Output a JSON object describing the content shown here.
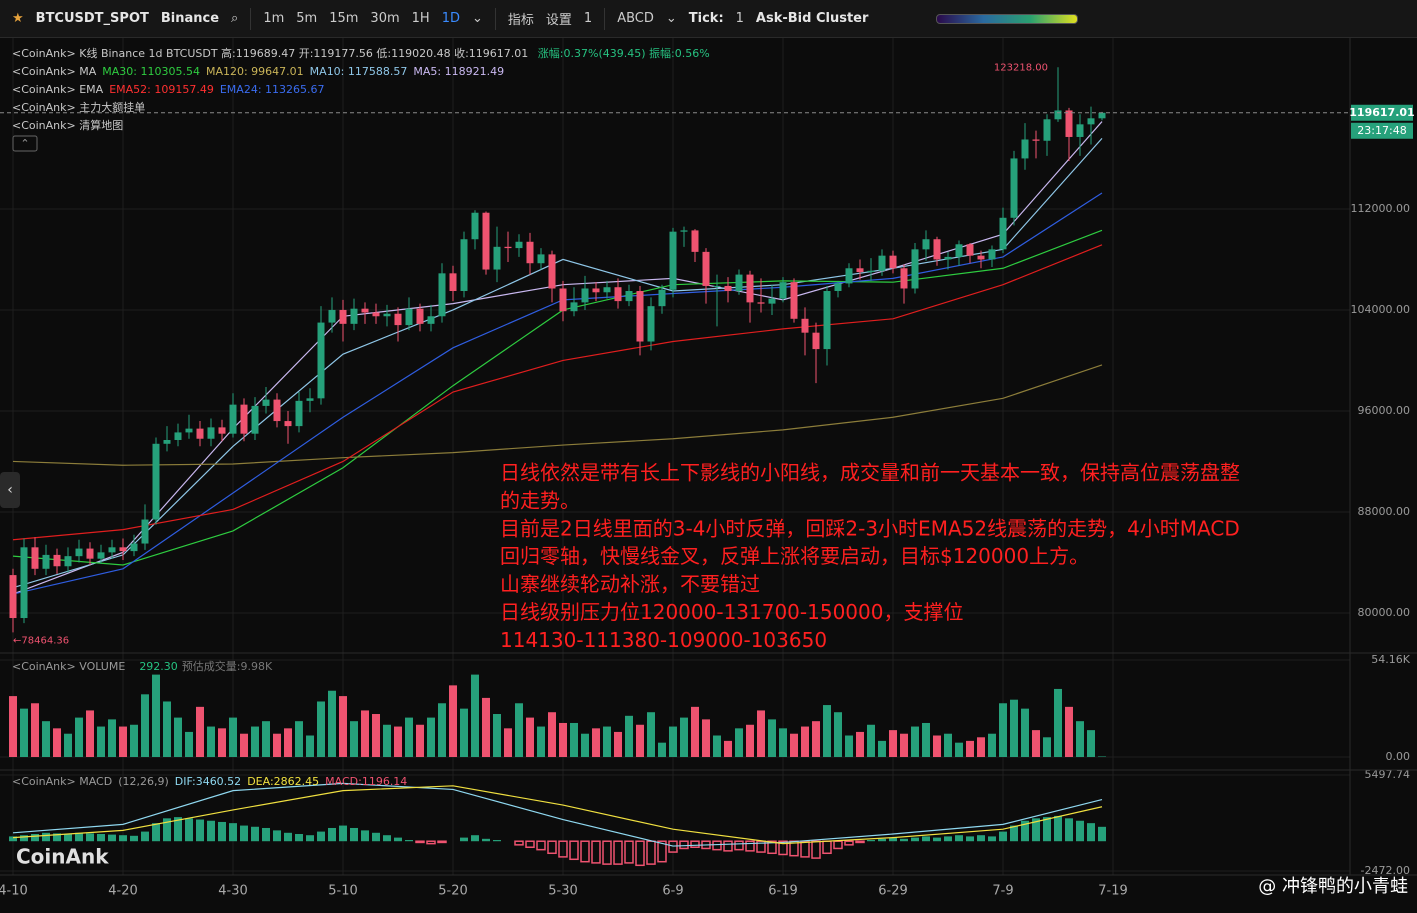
{
  "toolbar": {
    "symbol": "BTCUSDT_SPOT",
    "exchange": "Binance",
    "intervals": [
      "1m",
      "5m",
      "15m",
      "30m",
      "1H",
      "1D"
    ],
    "indicators": "指标",
    "settings": "设置",
    "layouts": "1",
    "abcd": "ABCD",
    "tick": "Tick:",
    "tick_value": "1",
    "cluster": "Ask-Bid Cluster"
  },
  "chart_data": {
    "type": "candlestick",
    "legend_lines": [
      {
        "items": [
          {
            "text": "<CoinAnk> K线  Binance 1d BTCUSDT 高:119689.47 开:119177.56 低:119020.48 收:119617.01 ",
            "color": "#c8c8c8"
          },
          {
            "text": "涨幅:0.37%(439.45) 振幅:0.56%",
            "color": "#26c281"
          }
        ]
      },
      {
        "items": [
          {
            "text": "<CoinAnk> MA",
            "color": "#c8c8c8"
          },
          {
            "text": "MA30: 110305.54",
            "color": "#2ecc40"
          },
          {
            "text": "MA120: 99647.01",
            "color": "#c9b458"
          },
          {
            "text": "MA10: 117588.57",
            "color": "#8fc7e8"
          },
          {
            "text": "MA5: 118921.49",
            "color": "#c9b8f0"
          }
        ]
      },
      {
        "items": [
          {
            "text": "<CoinAnk> EMA",
            "color": "#c8c8c8"
          },
          {
            "text": "EMA52: 109157.49",
            "color": "#ff3030"
          },
          {
            "text": "EMA24: 113265.67",
            "color": "#3a6cf0"
          }
        ]
      },
      {
        "items": [
          {
            "text": "<CoinAnk> 主力大额挂单",
            "color": "#c8c8c8"
          }
        ]
      },
      {
        "items": [
          {
            "text": "<CoinAnk> 清算地图",
            "color": "#c8c8c8"
          }
        ]
      }
    ],
    "xlim": [
      -0.5,
      121.5
    ],
    "xticks": [
      {
        "value": 0,
        "label": "4-10"
      },
      {
        "value": 10,
        "label": "4-20"
      },
      {
        "value": 20,
        "label": "4-30"
      },
      {
        "value": 30,
        "label": "5-10"
      },
      {
        "value": 40,
        "label": "5-20"
      },
      {
        "value": 50,
        "label": "5-30"
      },
      {
        "value": 60,
        "label": "6-9"
      },
      {
        "value": 70,
        "label": "6-19"
      },
      {
        "value": 80,
        "label": "6-29"
      },
      {
        "value": 90,
        "label": "7-9"
      },
      {
        "value": 100,
        "label": "7-19"
      }
    ],
    "ylim": [
      76830,
      125380
    ],
    "yticks": [
      {
        "value": 80000,
        "label": "80000.00"
      },
      {
        "value": 88000,
        "label": "88000.00"
      },
      {
        "value": 96000,
        "label": "96000.00"
      },
      {
        "value": 104000,
        "label": "104000.00"
      },
      {
        "value": 112000,
        "label": "112000.00"
      }
    ],
    "grid": true,
    "up_color": "#26a17b",
    "down_color": "#ef5370",
    "candles": {
      "open": [
        83000,
        79600,
        85200,
        83500,
        84600,
        83700,
        84500,
        85100,
        84300,
        84800,
        85200,
        84900,
        85500,
        87400,
        93400,
        93700,
        94300,
        94600,
        93800,
        94700,
        94200,
        96500,
        94200,
        96400,
        96900,
        95200,
        94800,
        96800,
        97000,
        103000,
        104000,
        102900,
        104100,
        103800,
        103500,
        103700,
        102800,
        104100,
        102900,
        103500,
        106900,
        105500,
        109600,
        111700,
        107200,
        109000,
        108900,
        109400,
        107700,
        108400,
        105700,
        103900,
        104600,
        105700,
        105400,
        105800,
        104700,
        105500,
        101500,
        104300,
        105600,
        110200,
        110300,
        108600,
        105900,
        105900,
        105500,
        106800,
        104600,
        104500,
        104900,
        106200,
        103300,
        102200,
        100900,
        105500,
        106100,
        107300,
        107000,
        107100,
        108300,
        107300,
        105700,
        108800,
        109600,
        108000,
        108200,
        109200,
        108300,
        108000,
        108800,
        111300,
        116000,
        117500,
        117400,
        119100,
        119800,
        117700,
        118700,
        119177.56
      ],
      "high": [
        83500,
        85900,
        86000,
        85400,
        85100,
        85200,
        85800,
        85600,
        85400,
        85800,
        85900,
        86200,
        88600,
        93900,
        94800,
        95000,
        95700,
        95200,
        95400,
        95300,
        97400,
        97000,
        97100,
        97900,
        97400,
        96000,
        97500,
        97800,
        104300,
        105000,
        104800,
        104900,
        104600,
        104500,
        104400,
        104200,
        105000,
        104500,
        104400,
        107700,
        107500,
        110200,
        111900,
        111800,
        110600,
        110200,
        110000,
        110100,
        108900,
        108700,
        106300,
        105800,
        106700,
        106200,
        106300,
        106500,
        106000,
        105900,
        105000,
        106000,
        110500,
        110600,
        110400,
        108900,
        106800,
        106600,
        107200,
        107100,
        106500,
        106000,
        106600,
        106500,
        104200,
        103000,
        105900,
        106300,
        107700,
        108000,
        108100,
        108800,
        108700,
        107600,
        109300,
        110300,
        109800,
        108600,
        109500,
        109300,
        108700,
        109100,
        112100,
        116600,
        118800,
        118200,
        119500,
        123218,
        120000,
        119500,
        120100,
        119689.47
      ],
      "low": [
        78464,
        79200,
        83000,
        83000,
        83100,
        83200,
        84000,
        83800,
        83900,
        84300,
        84200,
        84500,
        85000,
        87000,
        92800,
        93200,
        93800,
        93200,
        93200,
        93600,
        93900,
        93600,
        93700,
        95800,
        94700,
        93400,
        94300,
        95900,
        96500,
        102200,
        101500,
        102400,
        102900,
        102900,
        102700,
        101500,
        102400,
        102300,
        102300,
        103000,
        104700,
        105000,
        108800,
        106800,
        106200,
        107800,
        108200,
        106800,
        107200,
        104600,
        103100,
        103500,
        104000,
        104700,
        104900,
        104100,
        104300,
        100400,
        100800,
        103700,
        105000,
        109000,
        107800,
        104500,
        102700,
        104600,
        105200,
        103000,
        103800,
        103600,
        104600,
        103000,
        100400,
        98200,
        99600,
        105000,
        105800,
        106400,
        106300,
        106700,
        106900,
        104500,
        105300,
        107900,
        107500,
        107200,
        107500,
        107700,
        107300,
        107400,
        108500,
        110700,
        115100,
        116000,
        116200,
        118900,
        115800,
        116200,
        117100,
        119020.48
      ],
      "close": [
        79600,
        85200,
        83500,
        84600,
        83700,
        84500,
        85100,
        84300,
        84800,
        85200,
        84900,
        85500,
        87400,
        93400,
        93700,
        94300,
        94600,
        93800,
        94700,
        94200,
        96500,
        94200,
        96400,
        96900,
        95200,
        94800,
        96800,
        97000,
        103000,
        104000,
        102900,
        104100,
        103800,
        103500,
        103700,
        102800,
        104100,
        102900,
        103500,
        106900,
        105500,
        109600,
        111700,
        107200,
        109000,
        108900,
        109400,
        107700,
        108400,
        105700,
        103900,
        104600,
        105700,
        105400,
        105800,
        104700,
        105500,
        101500,
        104300,
        105600,
        110200,
        110300,
        108600,
        105900,
        105900,
        105500,
        106800,
        104600,
        104500,
        104900,
        106200,
        103300,
        102200,
        100900,
        105500,
        106100,
        107300,
        107000,
        107100,
        108300,
        107300,
        105700,
        108800,
        109600,
        108000,
        108200,
        109200,
        108300,
        108000,
        108800,
        111300,
        116000,
        117500,
        117400,
        119100,
        119800,
        117700,
        118700,
        119177.56,
        119617.01
      ]
    },
    "lines": [
      {
        "name": "MA5",
        "color": "#c9b8f0",
        "x": [
          0,
          10,
          20,
          30,
          40,
          50,
          60,
          70,
          80,
          90,
          99
        ],
        "values": [
          81500,
          84800,
          94600,
          103500,
          104500,
          106000,
          106500,
          104800,
          107300,
          110000,
          118921.49
        ]
      },
      {
        "name": "MA10",
        "color": "#8fc7e8",
        "x": [
          0,
          10,
          20,
          30,
          40,
          50,
          60,
          70,
          80,
          90,
          99
        ],
        "values": [
          82000,
          84600,
          93200,
          100500,
          104000,
          108000,
          105500,
          106000,
          107300,
          108800,
          117588.57
        ]
      },
      {
        "name": "MA30",
        "color": "#2ecc40",
        "x": [
          0,
          10,
          20,
          30,
          40,
          50,
          60,
          70,
          80,
          90,
          99
        ],
        "values": [
          84500,
          83800,
          86500,
          91500,
          98000,
          104000,
          106000,
          106300,
          106200,
          107300,
          110305.54
        ]
      },
      {
        "name": "MA120",
        "color": "#8c7d3a",
        "x": [
          0,
          10,
          20,
          30,
          40,
          50,
          60,
          70,
          80,
          90,
          99
        ],
        "values": [
          92000,
          91700,
          91800,
          92300,
          92700,
          93300,
          93800,
          94500,
          95500,
          97000,
          99647.01
        ]
      },
      {
        "name": "EMA24",
        "color": "#2f5de0",
        "x": [
          0,
          10,
          20,
          30,
          40,
          50,
          60,
          70,
          80,
          90,
          99
        ],
        "values": [
          81500,
          83500,
          89500,
          95500,
          101000,
          104800,
          105300,
          105800,
          106500,
          108200,
          113265.67
        ]
      },
      {
        "name": "EMA52",
        "color": "#e01e1e",
        "x": [
          0,
          10,
          20,
          30,
          40,
          50,
          60,
          70,
          80,
          90,
          99
        ],
        "values": [
          85800,
          86600,
          88200,
          92000,
          97500,
          100000,
          101500,
          102500,
          103300,
          106000,
          109157.49
        ]
      }
    ],
    "price_label": "119617.01",
    "timer": "23:17:48",
    "high_annotation": {
      "value": 123218,
      "label": "123218.00"
    },
    "low_annotation": {
      "value": 78464.36,
      "label": "←78464.36"
    },
    "annotation": [
      "日线依然是带有长上下影线的小阳线，成交量和前一天基本一致，保持高位震荡盘整",
      "的走势。",
      "目前是2日线里面的3-4小时反弹，回踩2-3小时EMA52线震荡的走势，4小时MACD",
      "回归零轴，快慢线金叉，反弹上涨将要启动，目标$120000上方。",
      "山寨继续轮动补涨，不要错过",
      "日线级别压力位120000-131700-150000，支撑位",
      "114130-111380-109000-103650"
    ],
    "volume": {
      "title": "<CoinAnk> VOLUME",
      "current": "292.30",
      "estimate": "预估成交量:9.98K",
      "ylim": [
        -7.26,
        56.95
      ],
      "yticks": [
        {
          "value": 0,
          "label": "0.00"
        },
        {
          "value": 54.16,
          "label": "54.16K"
        }
      ],
      "values": [
        34,
        27,
        30,
        20,
        16,
        13,
        22,
        26,
        17,
        21,
        17,
        18,
        35,
        46,
        31,
        22,
        14,
        28,
        17,
        16,
        22,
        13,
        17,
        20,
        13,
        16,
        20,
        12,
        31,
        37,
        34,
        20,
        26,
        24,
        18,
        17,
        22,
        18,
        22,
        30,
        40,
        27,
        46,
        33,
        24,
        16,
        30,
        22,
        17,
        25,
        19,
        19,
        13,
        16,
        17,
        14,
        23,
        18,
        25,
        8,
        17,
        22,
        28,
        21,
        12,
        9,
        16,
        18,
        26,
        21,
        16,
        13,
        17,
        20,
        29,
        25,
        12,
        14,
        18,
        9,
        15,
        13,
        17,
        19,
        12,
        13,
        8,
        9,
        11,
        13,
        30,
        32,
        27,
        15,
        11,
        38,
        28,
        20,
        15,
        0.2923
      ]
    },
    "macd": {
      "title": "<CoinAnk> MACD",
      "params": "(12,26,9)",
      "dif_label": "DIF:3460.52",
      "dea_label": "DEA:2862.45",
      "macd_label": "MACD:1196.14",
      "ylim": [
        -2804,
        5746.8
      ],
      "yticks": [
        {
          "value": 5497.74,
          "label": "5497.74"
        },
        {
          "value": -2472,
          "label": "-2472.00"
        }
      ],
      "histogram": [
        400,
        500,
        600,
        700,
        650,
        600,
        700,
        650,
        600,
        550,
        500,
        450,
        800,
        1500,
        1900,
        2000,
        1900,
        1800,
        1700,
        1600,
        1500,
        1300,
        1200,
        1100,
        900,
        700,
        600,
        500,
        800,
        1100,
        1300,
        1100,
        900,
        700,
        500,
        300,
        100,
        -100,
        -200,
        -100,
        0,
        300,
        500,
        200,
        100,
        0,
        -300,
        -500,
        -700,
        -1000,
        -1300,
        -1500,
        -1700,
        -1800,
        -1900,
        -1900,
        -1800,
        -2000,
        -1900,
        -1700,
        -900,
        -600,
        -500,
        -600,
        -700,
        -800,
        -700,
        -800,
        -900,
        -1000,
        -1100,
        -1200,
        -1300,
        -1400,
        -1000,
        -600,
        -300,
        -100,
        100,
        200,
        300,
        200,
        300,
        400,
        300,
        400,
        500,
        400,
        500,
        400,
        800,
        1300,
        1700,
        1900,
        2000,
        2100,
        1900,
        1700,
        1500,
        1196.14
      ],
      "lines": [
        {
          "name": "DIF",
          "color": "#8fd8f0",
          "x": [
            0,
            10,
            20,
            30,
            40,
            50,
            60,
            70,
            80,
            90,
            99
          ],
          "values": [
            700,
            1400,
            4200,
            4800,
            4300,
            1800,
            -400,
            -100,
            600,
            1400,
            3460.52
          ]
        },
        {
          "name": "DEA",
          "color": "#f0e040",
          "x": [
            0,
            10,
            20,
            30,
            40,
            50,
            60,
            70,
            80,
            90,
            99
          ],
          "values": [
            300,
            900,
            2600,
            4200,
            4600,
            3000,
            1000,
            -200,
            300,
            1000,
            2862.45
          ]
        }
      ]
    }
  },
  "watermark": "CoinAnk",
  "author": "@ 冲锋鸭的小青蛙"
}
